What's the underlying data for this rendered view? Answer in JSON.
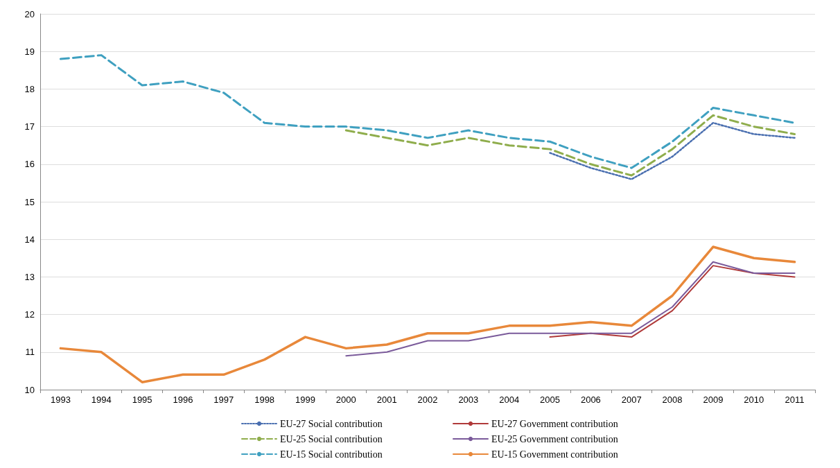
{
  "chart_data": {
    "type": "line",
    "categories": [
      "1993",
      "1994",
      "1995",
      "1996",
      "1997",
      "1998",
      "1999",
      "2000",
      "2001",
      "2002",
      "2003",
      "2004",
      "2005",
      "2006",
      "2007",
      "2008",
      "2009",
      "2010",
      "2011"
    ],
    "series": [
      {
        "name": "EU-27 Social contribution",
        "color": "#4a6fb0",
        "line_style": "dotted",
        "values": [
          null,
          null,
          null,
          null,
          null,
          null,
          null,
          null,
          null,
          null,
          null,
          null,
          16.3,
          15.9,
          15.6,
          16.2,
          17.1,
          16.8,
          16.7
        ]
      },
      {
        "name": "EU-27 Government contribution",
        "color": "#b03a3a",
        "line_style": "solid",
        "values": [
          null,
          null,
          null,
          null,
          null,
          null,
          null,
          null,
          null,
          null,
          null,
          null,
          11.4,
          11.5,
          11.4,
          12.1,
          13.3,
          13.1,
          13.0
        ]
      },
      {
        "name": "EU-25 Social contribution",
        "color": "#8fad4c",
        "line_style": "dashed",
        "values": [
          null,
          null,
          null,
          null,
          null,
          null,
          null,
          16.9,
          16.7,
          16.5,
          16.7,
          16.5,
          16.4,
          16.0,
          15.7,
          16.4,
          17.3,
          17.0,
          16.8
        ]
      },
      {
        "name": "EU-25 Government contribution",
        "color": "#7a5a9a",
        "line_style": "solid",
        "values": [
          null,
          null,
          null,
          null,
          null,
          null,
          null,
          10.9,
          11.0,
          11.3,
          11.3,
          11.5,
          11.5,
          11.5,
          11.5,
          12.2,
          13.4,
          13.1,
          13.1
        ]
      },
      {
        "name": "EU-15 Social contribution",
        "color": "#3fa0c0",
        "line_style": "dashed",
        "values": [
          18.8,
          18.9,
          18.1,
          18.2,
          17.9,
          17.1,
          17.0,
          17.0,
          16.9,
          16.7,
          16.9,
          16.7,
          16.6,
          16.2,
          15.9,
          16.6,
          17.5,
          17.3,
          17.1
        ]
      },
      {
        "name": "EU-15 Government contribution",
        "color": "#e8883a",
        "line_style": "solid",
        "values": [
          11.1,
          11.0,
          10.2,
          10.4,
          10.4,
          10.8,
          11.4,
          11.1,
          11.2,
          11.5,
          11.5,
          11.7,
          11.7,
          11.8,
          11.7,
          12.5,
          13.8,
          13.5,
          13.4
        ]
      }
    ],
    "ylim": [
      10,
      20
    ],
    "yticks": [
      10,
      11,
      12,
      13,
      14,
      15,
      16,
      17,
      18,
      19,
      20
    ],
    "grid": "y",
    "legend": "bottom",
    "marker": "none"
  }
}
